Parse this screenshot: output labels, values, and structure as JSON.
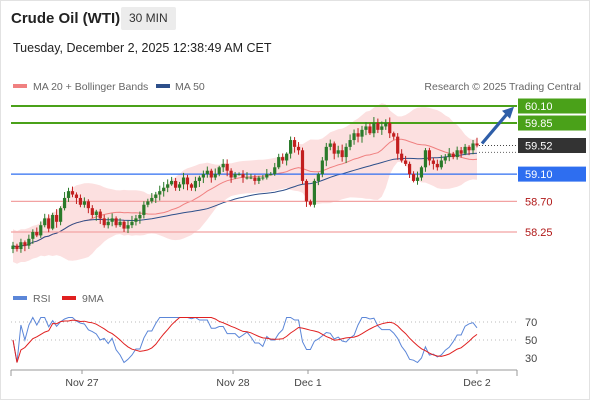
{
  "header": {
    "title": "Crude Oil (WTI)",
    "timeframe": "30 MIN",
    "datetime": "Tuesday, December 2, 2025 12:38:49 AM CET"
  },
  "colors": {
    "ma20": "#f08080",
    "ma50": "#2d4f8a",
    "bollinger_fill": "#fbd6d6",
    "resistance": "#4aa119",
    "support": "#2e6ef0",
    "pivot_line": "#f2a2a2",
    "current": "#333333",
    "up_candle": "#2a7a2a",
    "down_candle": "#c21f1f",
    "rsi": "#5b86d8",
    "rsi_ma": "#e02020",
    "arrow": "#2e5ea8"
  },
  "chart_data": [
    {
      "type": "candlestick",
      "title": "",
      "legend": [
        {
          "name": "MA 20 + Bollinger Bands",
          "color": "#f08080"
        },
        {
          "name": "MA 50",
          "color": "#2d4f8a"
        }
      ],
      "legend_position": "top-left",
      "attribution": "Research © 2025 Trading Central",
      "x_labels": [
        "Nov 27",
        "Nov 28",
        "Dec 1",
        "Dec 2"
      ],
      "ylim": [
        58.0,
        60.2
      ],
      "levels": [
        {
          "value": 60.1,
          "label": "60.10",
          "style": "resistance"
        },
        {
          "value": 59.85,
          "label": "59.85",
          "style": "resistance"
        },
        {
          "value": 59.52,
          "label": "59.52",
          "style": "current"
        },
        {
          "value": 59.1,
          "label": "59.10",
          "style": "support"
        },
        {
          "value": 58.7,
          "label": "58.70",
          "style": "pivot"
        },
        {
          "value": 58.25,
          "label": "58.25",
          "style": "pivot"
        }
      ],
      "close_series": [
        58.05,
        58.0,
        58.1,
        58.05,
        58.15,
        58.25,
        58.2,
        58.35,
        58.45,
        58.3,
        58.5,
        58.4,
        58.6,
        58.75,
        58.85,
        58.8,
        58.75,
        58.65,
        58.7,
        58.6,
        58.5,
        58.55,
        58.45,
        58.35,
        58.4,
        58.45,
        58.35,
        58.4,
        58.3,
        58.35,
        58.4,
        58.45,
        58.5,
        58.65,
        58.7,
        58.75,
        58.8,
        58.85,
        58.9,
        58.95,
        59.0,
        58.9,
        58.95,
        59.05,
        58.95,
        58.9,
        59.0,
        59.05,
        59.1,
        59.15,
        59.05,
        59.1,
        59.2,
        59.25,
        59.15,
        59.05,
        59.1,
        59.1,
        59.05,
        59.05,
        59.05,
        59.0,
        59.05,
        59.05,
        59.1,
        59.1,
        59.2,
        59.35,
        59.3,
        59.4,
        59.6,
        59.5,
        59.45,
        59.0,
        58.7,
        58.65,
        59.0,
        59.1,
        59.3,
        59.5,
        59.55,
        59.4,
        59.45,
        59.35,
        59.5,
        59.6,
        59.7,
        59.65,
        59.75,
        59.8,
        59.7,
        59.85,
        59.75,
        59.8,
        59.85,
        59.7,
        59.65,
        59.4,
        59.3,
        59.25,
        59.1,
        59.0,
        59.05,
        59.2,
        59.45,
        59.3,
        59.25,
        59.2,
        59.3,
        59.35,
        59.4,
        59.35,
        59.45,
        59.4,
        59.5,
        59.45,
        59.55,
        59.52
      ],
      "rsi_panel": {
        "legend": [
          {
            "name": "RSI",
            "color": "#5b86d8"
          },
          {
            "name": "9MA",
            "color": "#e02020"
          }
        ],
        "ticks": [
          70,
          50,
          30
        ],
        "ylim": [
          20,
          80
        ]
      }
    }
  ]
}
